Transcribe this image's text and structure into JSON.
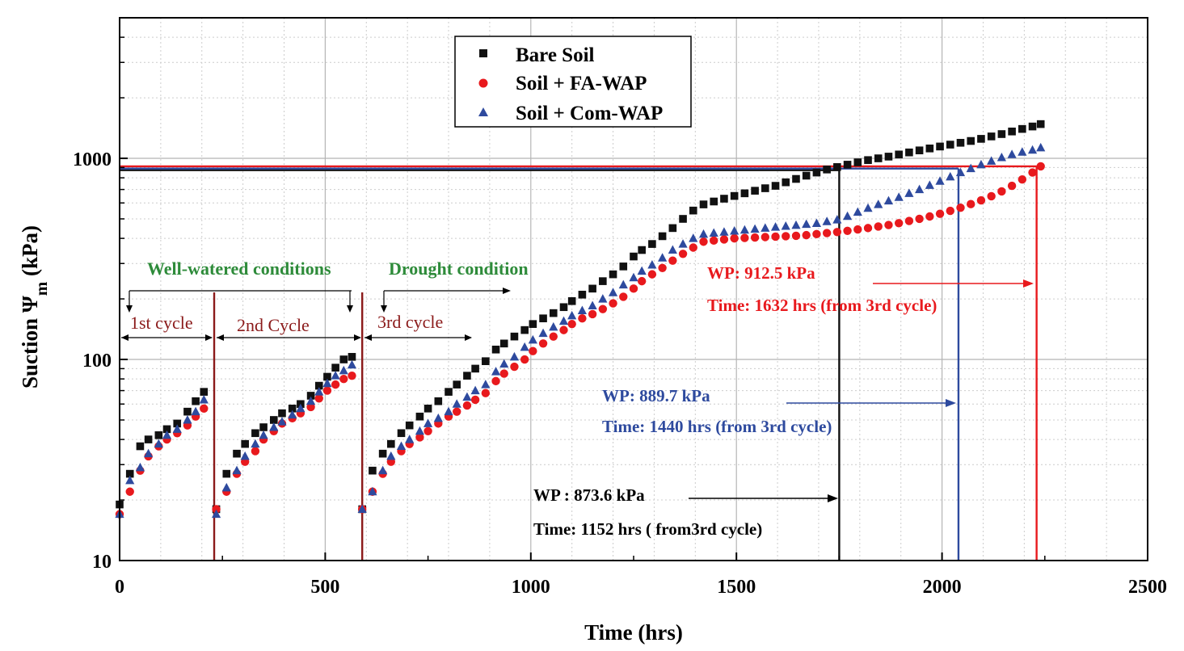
{
  "chart_data": {
    "type": "scatter",
    "xlabel": "Time (hrs)",
    "ylabel": "Suction Ψm (kPa)",
    "ylabel_parts": {
      "main": "Suction Ψ",
      "sub": "m",
      "unit": " (kPa)"
    },
    "xlim": [
      0,
      2500
    ],
    "ylim": [
      10,
      5000
    ],
    "yscale": "log",
    "x_ticks": [
      0,
      500,
      1000,
      1500,
      2000,
      2500
    ],
    "x_tick_labels": [
      "0",
      "500",
      "1000",
      "1500",
      "2000",
      "2500"
    ],
    "y_ticks": [
      10,
      100,
      1000
    ],
    "y_tick_labels": [
      "10",
      "100",
      "1000"
    ],
    "grid": true,
    "legend": "top-center",
    "colors": {
      "bare": "#111111",
      "fa": "#e8191d",
      "com": "#2e4a9e",
      "green": "#2e8b3a",
      "maroon": "#8b1a1a"
    },
    "series": [
      {
        "name": "Bare Soil",
        "marker": "square",
        "color": "#111111",
        "x": [
          0,
          25,
          50,
          70,
          95,
          115,
          140,
          165,
          185,
          205,
          235,
          260,
          285,
          305,
          330,
          350,
          375,
          395,
          420,
          440,
          465,
          485,
          505,
          525,
          545,
          565,
          590,
          615,
          640,
          660,
          685,
          705,
          730,
          750,
          775,
          800,
          820,
          845,
          865,
          890,
          915,
          935,
          960,
          985,
          1005,
          1030,
          1055,
          1080,
          1100,
          1125,
          1150,
          1175,
          1200,
          1225,
          1250,
          1270,
          1295,
          1320,
          1345,
          1370,
          1395,
          1420,
          1445,
          1470,
          1495,
          1520,
          1545,
          1570,
          1595,
          1620,
          1645,
          1670,
          1695,
          1720,
          1745,
          1770,
          1795,
          1820,
          1845,
          1870,
          1895,
          1920,
          1945,
          1970,
          1995,
          2020,
          2045,
          2070,
          2095,
          2120,
          2145,
          2170,
          2195,
          2220,
          2240
        ],
        "y": [
          19,
          27,
          37,
          40,
          42,
          45,
          48,
          55,
          62,
          69,
          18,
          27,
          34,
          38,
          43,
          46,
          50,
          54,
          57,
          60,
          66,
          74,
          82,
          91,
          100,
          103,
          18,
          28,
          34,
          38,
          43,
          47,
          52,
          57,
          62,
          69,
          75,
          83,
          90,
          98,
          112,
          120,
          130,
          140,
          150,
          160,
          170,
          182,
          195,
          210,
          225,
          245,
          265,
          290,
          325,
          350,
          375,
          410,
          450,
          500,
          550,
          590,
          610,
          630,
          650,
          670,
          690,
          710,
          730,
          760,
          790,
          820,
          850,
          880,
          905,
          930,
          955,
          980,
          1000,
          1020,
          1045,
          1070,
          1095,
          1120,
          1145,
          1170,
          1195,
          1220,
          1250,
          1285,
          1320,
          1360,
          1400,
          1440,
          1480
        ]
      },
      {
        "name": "Soil + FA-WAP",
        "marker": "circle",
        "color": "#e8191d",
        "x": [
          0,
          25,
          50,
          70,
          95,
          115,
          140,
          165,
          185,
          205,
          235,
          260,
          285,
          305,
          330,
          350,
          375,
          395,
          420,
          440,
          465,
          485,
          505,
          525,
          545,
          565,
          590,
          615,
          640,
          660,
          685,
          705,
          730,
          750,
          775,
          800,
          820,
          845,
          865,
          890,
          915,
          935,
          960,
          985,
          1005,
          1030,
          1055,
          1080,
          1100,
          1125,
          1150,
          1175,
          1200,
          1225,
          1250,
          1270,
          1295,
          1320,
          1345,
          1370,
          1395,
          1420,
          1445,
          1470,
          1495,
          1520,
          1545,
          1570,
          1595,
          1620,
          1645,
          1670,
          1695,
          1720,
          1745,
          1770,
          1795,
          1820,
          1845,
          1870,
          1895,
          1920,
          1945,
          1970,
          1995,
          2020,
          2045,
          2070,
          2095,
          2120,
          2145,
          2170,
          2195,
          2220,
          2240
        ],
        "y": [
          17,
          22,
          28,
          33,
          37,
          40,
          43,
          47,
          52,
          57,
          18,
          22,
          27,
          31,
          35,
          40,
          44,
          48,
          51,
          54,
          58,
          64,
          70,
          75,
          80,
          83,
          18,
          22,
          27,
          31,
          35,
          38,
          41,
          44,
          48,
          52,
          55,
          59,
          63,
          68,
          78,
          85,
          92,
          100,
          110,
          120,
          130,
          140,
          150,
          160,
          168,
          178,
          190,
          205,
          225,
          245,
          265,
          285,
          310,
          335,
          360,
          385,
          390,
          395,
          400,
          402,
          404,
          406,
          408,
          410,
          412,
          415,
          420,
          425,
          430,
          436,
          443,
          450,
          458,
          466,
          476,
          488,
          500,
          514,
          530,
          548,
          568,
          592,
          618,
          648,
          685,
          730,
          785,
          850,
          912.5
        ]
      },
      {
        "name": "Soil + Com-WAP",
        "marker": "triangle",
        "color": "#2e4a9e",
        "x": [
          0,
          25,
          50,
          70,
          95,
          115,
          140,
          165,
          185,
          205,
          235,
          260,
          285,
          305,
          330,
          350,
          375,
          395,
          420,
          440,
          465,
          485,
          505,
          525,
          545,
          565,
          590,
          615,
          640,
          660,
          685,
          705,
          730,
          750,
          775,
          800,
          820,
          845,
          865,
          890,
          915,
          935,
          960,
          985,
          1005,
          1030,
          1055,
          1080,
          1100,
          1125,
          1150,
          1175,
          1200,
          1225,
          1250,
          1270,
          1295,
          1320,
          1345,
          1370,
          1395,
          1420,
          1445,
          1470,
          1495,
          1520,
          1545,
          1570,
          1595,
          1620,
          1645,
          1670,
          1695,
          1720,
          1745,
          1770,
          1795,
          1820,
          1845,
          1870,
          1895,
          1920,
          1945,
          1970,
          1995,
          2020,
          2045,
          2070,
          2095,
          2120,
          2145,
          2170,
          2195,
          2220,
          2240
        ],
        "y": [
          17,
          25,
          29,
          34,
          38,
          42,
          45,
          50,
          55,
          63,
          17,
          23,
          28,
          33,
          38,
          42,
          46,
          49,
          53,
          57,
          62,
          69,
          76,
          83,
          88,
          94,
          18,
          22,
          28,
          33,
          37,
          40,
          44,
          48,
          51,
          55,
          60,
          65,
          70,
          75,
          87,
          95,
          103,
          115,
          125,
          135,
          145,
          155,
          165,
          175,
          185,
          200,
          215,
          235,
          255,
          275,
          295,
          320,
          350,
          375,
          400,
          420,
          425,
          430,
          435,
          440,
          445,
          450,
          455,
          460,
          465,
          470,
          475,
          485,
          495,
          515,
          540,
          565,
          590,
          615,
          640,
          670,
          700,
          735,
          770,
          810,
          850,
          889.7,
          930,
          970,
          1010,
          1045,
          1075,
          1100,
          1130
        ]
      }
    ],
    "annotations": {
      "well_watered": "Well-watered conditions",
      "drought": "Drought condition",
      "cycle1": "1st cycle",
      "cycle2": "2nd Cycle",
      "cycle3": "3rd cycle",
      "wp_fa": "WP: 912.5 kPa",
      "time_fa": "Time: 1632 hrs (from 3rd cycle)",
      "wp_com": "WP: 889.7 kPa",
      "time_com": "Time: 1440 hrs (from 3rd cycle)",
      "wp_bare": "WP : 873.6 kPa",
      "time_bare": "Time: 1152 hrs ( from3rd cycle)"
    },
    "cycle_boundaries": [
      230,
      590
    ],
    "wilting_points": [
      {
        "series": "Bare Soil",
        "suction": 873.6,
        "time": 1750
      },
      {
        "series": "Soil + Com-WAP",
        "suction": 889.7,
        "time": 2040
      },
      {
        "series": "Soil + FA-WAP",
        "suction": 912.5,
        "time": 2230
      }
    ]
  }
}
